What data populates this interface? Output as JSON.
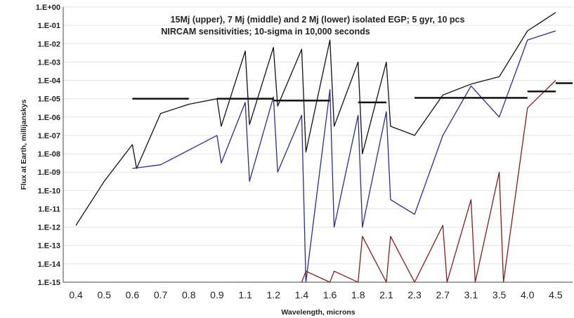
{
  "chart_data": {
    "type": "line",
    "title": "",
    "annotations": [
      "15Mj (upper), 7 Mj (middle) and 2 Mj (lower) isolated EGP; 5 gyr, 10 pcs",
      "NIRCAM sensitivities; 10-sigma in 10,000 seconds"
    ],
    "xlabel": "Wavelength, microns",
    "ylabel": "Flux at Earth, millijanskys",
    "y_scale": "log",
    "ylim_exp": [
      -15,
      0
    ],
    "y_tick_labels": [
      "1.E+00",
      "1.E-01",
      "1.E-02",
      "1.E-03",
      "1.E-04",
      "1.E-05",
      "1.E-06",
      "1.E-07",
      "1.E-08",
      "1.E-09",
      "1.E-10",
      "1.E-11",
      "1.E-12",
      "1.E-13",
      "1.E-14",
      "1.E-15"
    ],
    "x_tick_labels": [
      "0.4",
      "0.5",
      "0.6",
      "0.7",
      "0.8",
      "0.9",
      "1.1",
      "1.2",
      "1.4",
      "1.6",
      "1.8",
      "2.1",
      "2.3",
      "2.7",
      "3.1",
      "3.5",
      "4.0",
      "4.5"
    ],
    "series": [
      {
        "color": "#111111",
        "x": [
          "0.4",
          "0.5",
          "0.6",
          "0.6",
          "0.7",
          "0.8",
          "0.9",
          "0.9",
          "1.1",
          "1.1",
          "1.2",
          "1.2",
          "1.4",
          "1.4",
          "1.6",
          "1.6",
          "1.8",
          "1.8",
          "2.1",
          "2.1",
          "2.3",
          "2.7",
          "3.1",
          "3.5",
          "4.0",
          "4.5"
        ],
        "log_flux": [
          -11.9,
          -9.5,
          -7.5,
          -8.8,
          -5.8,
          -5.3,
          -5.0,
          -6.5,
          -2.4,
          -6.4,
          -2.2,
          -5.4,
          -2.3,
          -7.9,
          -1.8,
          -6.5,
          -3.0,
          -8.0,
          -3.0,
          -6.5,
          -7.0,
          -4.8,
          -4.2,
          -3.8,
          -1.3,
          -0.3
        ]
      },
      {
        "color": "#2a2a9c",
        "x": [
          "0.6",
          "0.7",
          "0.8",
          "0.9",
          "0.9",
          "1.1",
          "1.1",
          "1.2",
          "1.2",
          "1.4",
          "1.4",
          "1.6",
          "1.6",
          "1.8",
          "1.8",
          "2.1",
          "2.1",
          "2.3",
          "2.7",
          "3.1",
          "3.5",
          "4.0",
          "4.5"
        ],
        "log_flux": [
          -8.8,
          -8.6,
          -7.8,
          -7.0,
          -8.5,
          -5.2,
          -9.5,
          -4.9,
          -9.0,
          -5.9,
          -15.0,
          -4.5,
          -12.0,
          -5.9,
          -12.0,
          -5.7,
          -10.5,
          -11.3,
          -7.0,
          -4.3,
          -6.0,
          -1.8,
          -1.3
        ]
      },
      {
        "color": "#8c1a1a",
        "x": [
          "1.4",
          "1.4",
          "1.6",
          "1.6",
          "1.8",
          "1.8",
          "2.1",
          "2.1",
          "2.3",
          "2.7",
          "2.7",
          "3.1",
          "3.1",
          "3.5",
          "3.5",
          "4.0",
          "4.5"
        ],
        "log_flux": [
          -15.0,
          -14.4,
          -15.0,
          -14.4,
          -15.0,
          -12.5,
          -15.0,
          -12.5,
          -15.0,
          -11.9,
          -15.0,
          -10.5,
          -15.0,
          -9.0,
          -15.0,
          -5.5,
          -4.0
        ]
      }
    ],
    "sensitivity_segments": [
      {
        "x_start": "0.6",
        "x_end": "0.8",
        "log_flux": -5.0
      },
      {
        "x_start": "0.9",
        "x_end": "1.2",
        "log_flux": -5.0
      },
      {
        "x_start": "1.2",
        "x_end": "1.6",
        "log_flux": -5.1
      },
      {
        "x_start": "1.8",
        "x_end": "2.1",
        "log_flux": -5.2
      },
      {
        "x_start": "2.3",
        "x_end": "3.1",
        "log_flux": -4.95
      },
      {
        "x_start": "3.1",
        "x_end": "4.0",
        "log_flux": -4.95
      },
      {
        "x_start": "4.0",
        "x_end": "4.5",
        "log_flux": -4.6
      },
      {
        "x_start": "4.5",
        "x_end": "4.5",
        "log_flux": -4.15
      }
    ]
  }
}
